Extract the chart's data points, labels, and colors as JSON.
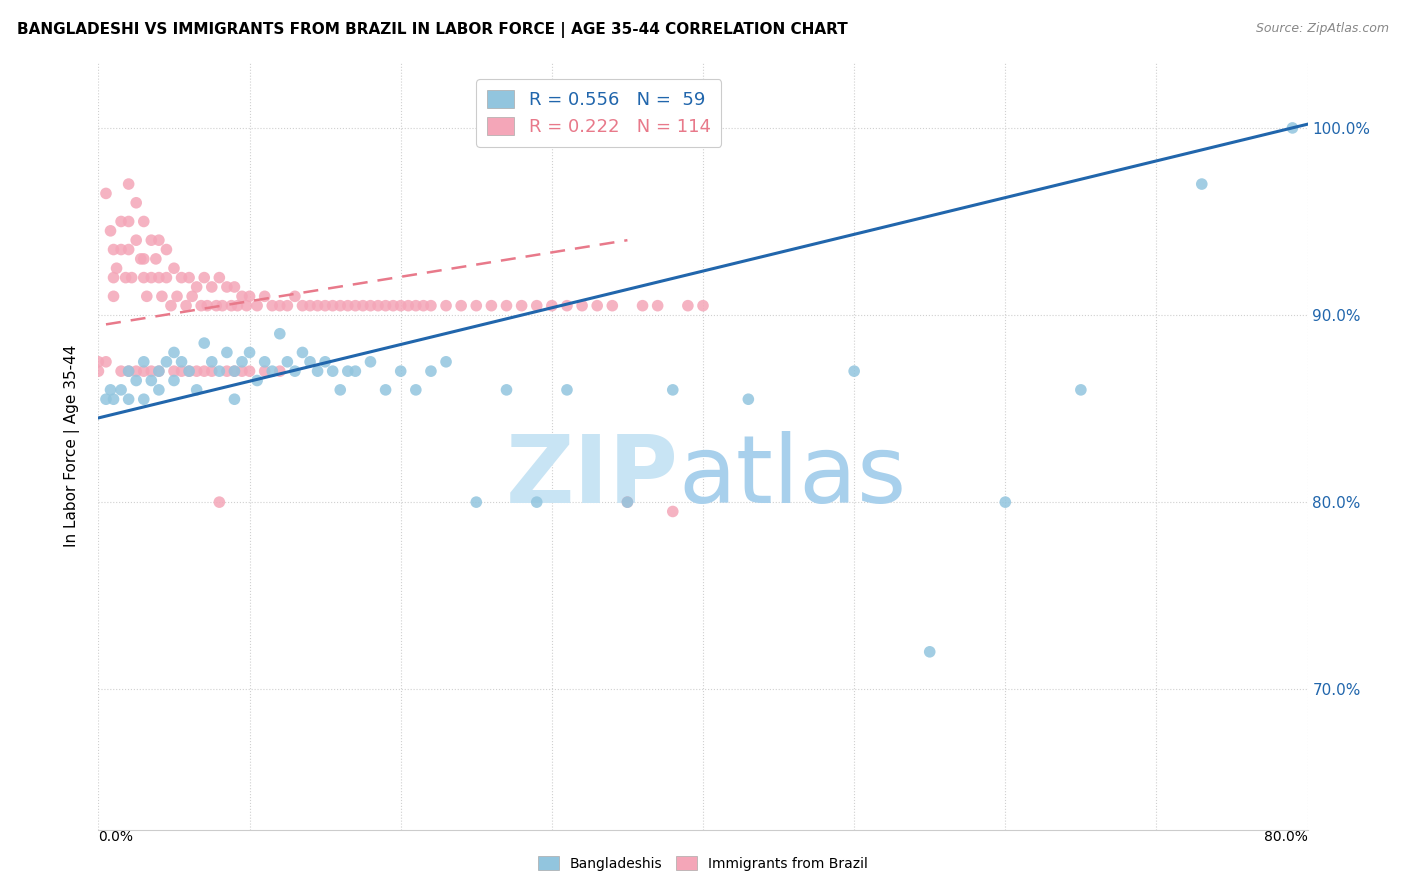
{
  "title": "BANGLADESHI VS IMMIGRANTS FROM BRAZIL IN LABOR FORCE | AGE 35-44 CORRELATION CHART",
  "source": "Source: ZipAtlas.com",
  "ylabel": "In Labor Force | Age 35-44",
  "legend_blue": "R = 0.556   N =  59",
  "legend_pink": "R = 0.222   N = 114",
  "blue_color": "#92c5de",
  "pink_color": "#f4a6b8",
  "blue_line_color": "#2166ac",
  "pink_line_color": "#e8798a",
  "xlim": [
    0.0,
    0.8
  ],
  "ylim": [
    0.625,
    1.035
  ],
  "yticks": [
    0.7,
    0.8,
    0.9,
    1.0
  ],
  "ytick_labels": [
    "70.0%",
    "80.0%",
    "90.0%",
    "100.0%"
  ],
  "blue_scatter_x": [
    0.005,
    0.008,
    0.01,
    0.015,
    0.02,
    0.02,
    0.025,
    0.03,
    0.03,
    0.035,
    0.04,
    0.04,
    0.045,
    0.05,
    0.05,
    0.055,
    0.06,
    0.065,
    0.07,
    0.075,
    0.08,
    0.085,
    0.09,
    0.09,
    0.095,
    0.1,
    0.105,
    0.11,
    0.115,
    0.12,
    0.125,
    0.13,
    0.135,
    0.14,
    0.145,
    0.15,
    0.155,
    0.16,
    0.165,
    0.17,
    0.18,
    0.19,
    0.2,
    0.21,
    0.22,
    0.23,
    0.25,
    0.27,
    0.29,
    0.31,
    0.35,
    0.38,
    0.43,
    0.5,
    0.55,
    0.6,
    0.65,
    0.73,
    0.79
  ],
  "blue_scatter_y": [
    0.855,
    0.86,
    0.855,
    0.86,
    0.87,
    0.855,
    0.865,
    0.875,
    0.855,
    0.865,
    0.87,
    0.86,
    0.875,
    0.88,
    0.865,
    0.875,
    0.87,
    0.86,
    0.885,
    0.875,
    0.87,
    0.88,
    0.855,
    0.87,
    0.875,
    0.88,
    0.865,
    0.875,
    0.87,
    0.89,
    0.875,
    0.87,
    0.88,
    0.875,
    0.87,
    0.875,
    0.87,
    0.86,
    0.87,
    0.87,
    0.875,
    0.86,
    0.87,
    0.86,
    0.87,
    0.875,
    0.8,
    0.86,
    0.8,
    0.86,
    0.8,
    0.86,
    0.855,
    0.87,
    0.72,
    0.8,
    0.86,
    0.97,
    1.0
  ],
  "pink_scatter_x": [
    0.0,
    0.0,
    0.005,
    0.005,
    0.008,
    0.01,
    0.01,
    0.01,
    0.012,
    0.015,
    0.015,
    0.015,
    0.018,
    0.02,
    0.02,
    0.02,
    0.02,
    0.022,
    0.025,
    0.025,
    0.025,
    0.028,
    0.03,
    0.03,
    0.03,
    0.03,
    0.032,
    0.035,
    0.035,
    0.035,
    0.038,
    0.04,
    0.04,
    0.04,
    0.042,
    0.045,
    0.045,
    0.048,
    0.05,
    0.05,
    0.052,
    0.055,
    0.055,
    0.058,
    0.06,
    0.06,
    0.062,
    0.065,
    0.065,
    0.068,
    0.07,
    0.07,
    0.072,
    0.075,
    0.075,
    0.078,
    0.08,
    0.08,
    0.082,
    0.085,
    0.085,
    0.088,
    0.09,
    0.09,
    0.092,
    0.095,
    0.095,
    0.098,
    0.1,
    0.1,
    0.105,
    0.11,
    0.11,
    0.115,
    0.12,
    0.12,
    0.125,
    0.13,
    0.135,
    0.14,
    0.145,
    0.15,
    0.155,
    0.16,
    0.165,
    0.17,
    0.175,
    0.18,
    0.185,
    0.19,
    0.195,
    0.2,
    0.205,
    0.21,
    0.215,
    0.22,
    0.23,
    0.24,
    0.25,
    0.26,
    0.27,
    0.28,
    0.29,
    0.3,
    0.31,
    0.32,
    0.33,
    0.34,
    0.35,
    0.36,
    0.37,
    0.38,
    0.39,
    0.4
  ],
  "pink_scatter_y": [
    0.875,
    0.87,
    0.965,
    0.875,
    0.945,
    0.935,
    0.92,
    0.91,
    0.925,
    0.95,
    0.935,
    0.87,
    0.92,
    0.97,
    0.95,
    0.935,
    0.87,
    0.92,
    0.96,
    0.94,
    0.87,
    0.93,
    0.95,
    0.93,
    0.92,
    0.87,
    0.91,
    0.94,
    0.92,
    0.87,
    0.93,
    0.94,
    0.92,
    0.87,
    0.91,
    0.935,
    0.92,
    0.905,
    0.925,
    0.87,
    0.91,
    0.92,
    0.87,
    0.905,
    0.92,
    0.87,
    0.91,
    0.915,
    0.87,
    0.905,
    0.92,
    0.87,
    0.905,
    0.915,
    0.87,
    0.905,
    0.92,
    0.8,
    0.905,
    0.915,
    0.87,
    0.905,
    0.915,
    0.87,
    0.905,
    0.91,
    0.87,
    0.905,
    0.91,
    0.87,
    0.905,
    0.91,
    0.87,
    0.905,
    0.905,
    0.87,
    0.905,
    0.91,
    0.905,
    0.905,
    0.905,
    0.905,
    0.905,
    0.905,
    0.905,
    0.905,
    0.905,
    0.905,
    0.905,
    0.905,
    0.905,
    0.905,
    0.905,
    0.905,
    0.905,
    0.905,
    0.905,
    0.905,
    0.905,
    0.905,
    0.905,
    0.905,
    0.905,
    0.905,
    0.905,
    0.905,
    0.905,
    0.905,
    0.8,
    0.905,
    0.905,
    0.795,
    0.905,
    0.905
  ],
  "blue_line_x": [
    0.0,
    0.8
  ],
  "blue_line_y": [
    0.845,
    1.002
  ],
  "pink_line_x": [
    0.005,
    0.35
  ],
  "pink_line_y": [
    0.895,
    0.94
  ]
}
